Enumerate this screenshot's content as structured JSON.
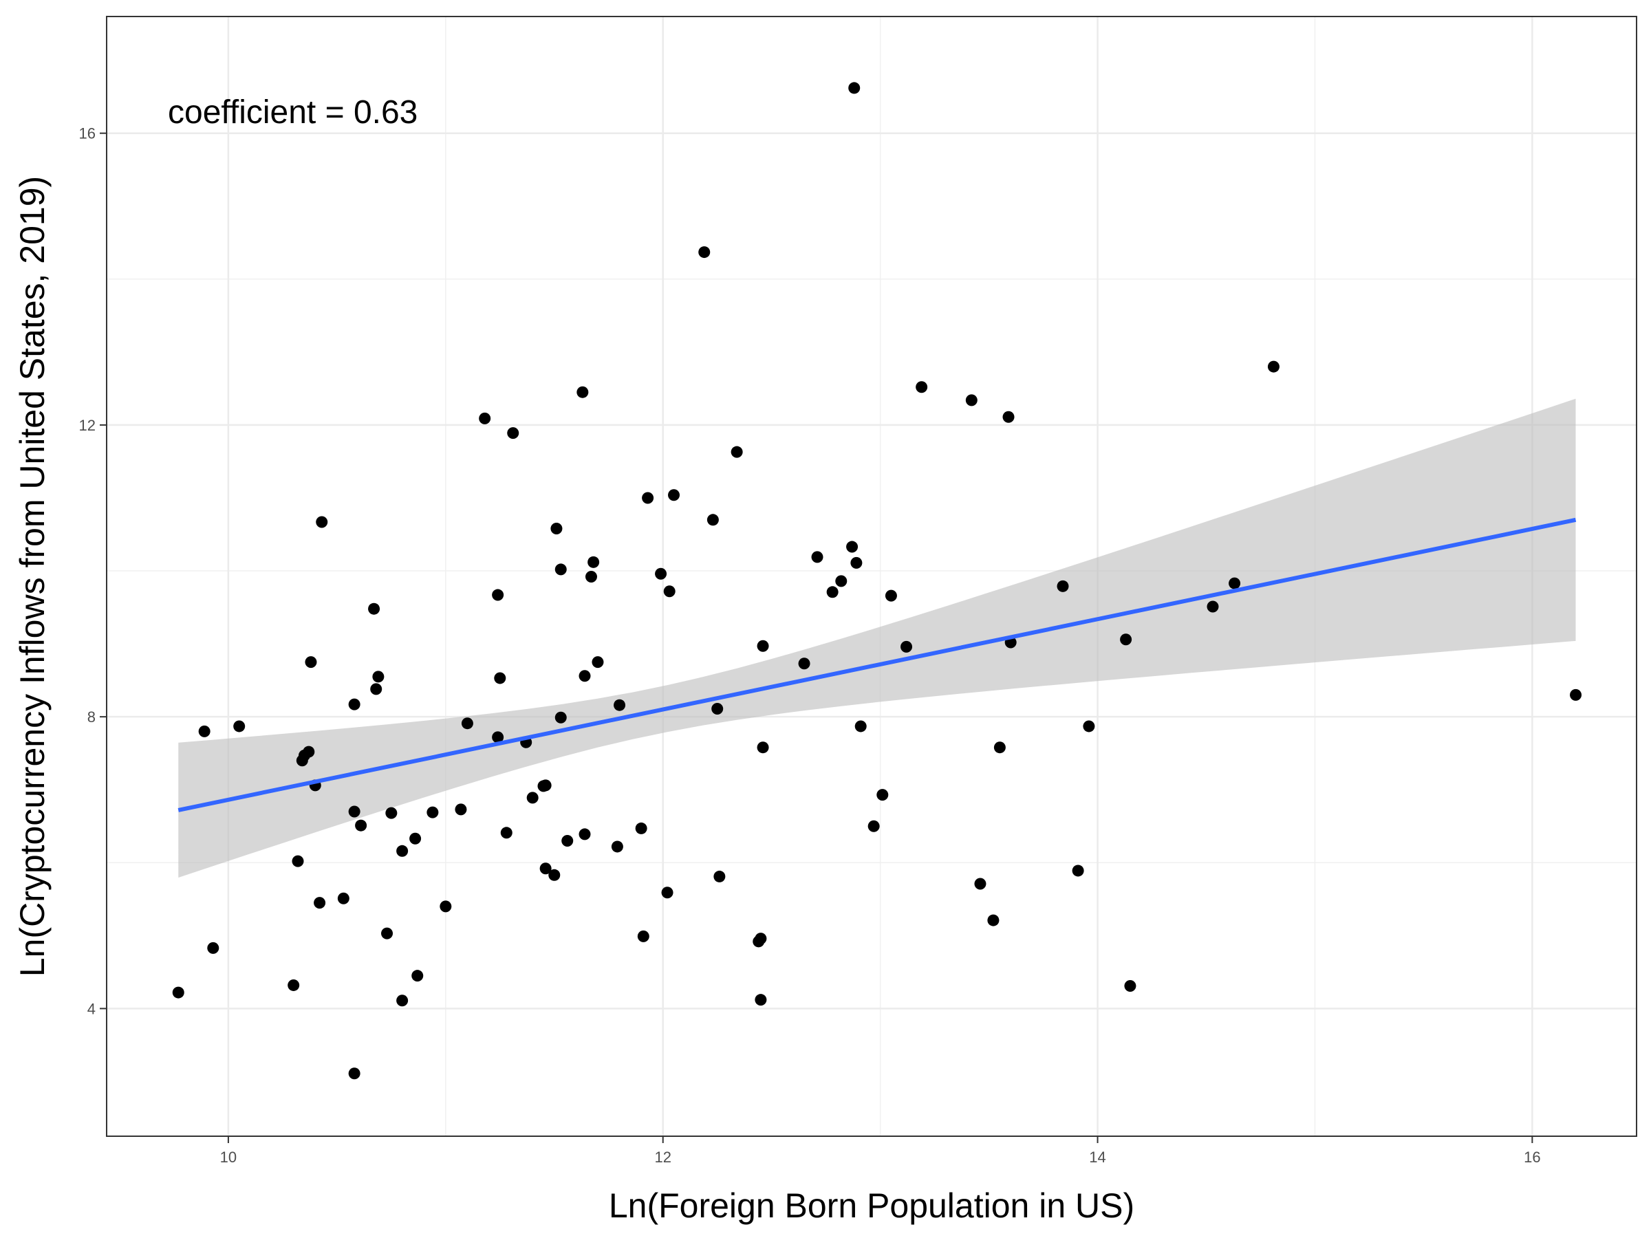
{
  "chart_data": {
    "type": "scatter",
    "xlabel": "Ln(Foreign Born Population in US)",
    "ylabel": "Ln(Cryptocurrency Inflows from United States, 2019)",
    "annotation": "coefficient =  0.63",
    "xlim": [
      9.44,
      16.48
    ],
    "ylim": [
      2.25,
      17.6
    ],
    "x_ticks": [
      10,
      12,
      14,
      16
    ],
    "y_ticks": [
      4,
      8,
      12,
      16
    ],
    "x_tick_labels": [
      "10",
      "12",
      "14",
      "16"
    ],
    "y_tick_labels": [
      "4",
      "8",
      "12",
      "16"
    ],
    "grid": true,
    "point_color": "#000000",
    "line_color": "#3366ff",
    "band_color": "#bfbfbf",
    "regression": {
      "x": [
        9.77,
        16.2
      ],
      "y": [
        6.72,
        10.7
      ],
      "ci_upper": [
        7.65,
        12.4
      ],
      "ci_lower": [
        5.8,
        9.08
      ]
    },
    "points": [
      {
        "x": 9.77,
        "y": 4.22
      },
      {
        "x": 9.89,
        "y": 7.8
      },
      {
        "x": 9.93,
        "y": 4.83
      },
      {
        "x": 10.05,
        "y": 7.87
      },
      {
        "x": 10.3,
        "y": 4.32
      },
      {
        "x": 10.32,
        "y": 6.02
      },
      {
        "x": 10.34,
        "y": 7.4
      },
      {
        "x": 10.35,
        "y": 7.47
      },
      {
        "x": 10.37,
        "y": 7.52
      },
      {
        "x": 10.38,
        "y": 8.75
      },
      {
        "x": 10.4,
        "y": 7.06
      },
      {
        "x": 10.42,
        "y": 5.45
      },
      {
        "x": 10.43,
        "y": 10.67
      },
      {
        "x": 10.53,
        "y": 5.51
      },
      {
        "x": 10.58,
        "y": 3.11
      },
      {
        "x": 10.58,
        "y": 6.7
      },
      {
        "x": 10.58,
        "y": 8.17
      },
      {
        "x": 10.61,
        "y": 6.51
      },
      {
        "x": 10.67,
        "y": 9.48
      },
      {
        "x": 10.68,
        "y": 8.38
      },
      {
        "x": 10.69,
        "y": 8.55
      },
      {
        "x": 10.73,
        "y": 5.03
      },
      {
        "x": 10.75,
        "y": 6.68
      },
      {
        "x": 10.8,
        "y": 4.11
      },
      {
        "x": 10.8,
        "y": 6.16
      },
      {
        "x": 10.86,
        "y": 6.33
      },
      {
        "x": 10.87,
        "y": 4.45
      },
      {
        "x": 10.94,
        "y": 6.69
      },
      {
        "x": 11.0,
        "y": 5.4
      },
      {
        "x": 11.07,
        "y": 6.73
      },
      {
        "x": 11.1,
        "y": 7.91
      },
      {
        "x": 11.18,
        "y": 12.09
      },
      {
        "x": 11.24,
        "y": 9.67
      },
      {
        "x": 11.24,
        "y": 7.72
      },
      {
        "x": 11.25,
        "y": 8.53
      },
      {
        "x": 11.28,
        "y": 6.41
      },
      {
        "x": 11.31,
        "y": 11.89
      },
      {
        "x": 11.37,
        "y": 7.65
      },
      {
        "x": 11.4,
        "y": 6.89
      },
      {
        "x": 11.45,
        "y": 7.05
      },
      {
        "x": 11.46,
        "y": 7.06
      },
      {
        "x": 11.46,
        "y": 5.92
      },
      {
        "x": 11.5,
        "y": 5.83
      },
      {
        "x": 11.51,
        "y": 10.58
      },
      {
        "x": 11.53,
        "y": 10.02
      },
      {
        "x": 11.53,
        "y": 7.99
      },
      {
        "x": 11.56,
        "y": 6.3
      },
      {
        "x": 11.63,
        "y": 12.45
      },
      {
        "x": 11.64,
        "y": 8.56
      },
      {
        "x": 11.64,
        "y": 6.39
      },
      {
        "x": 11.67,
        "y": 9.92
      },
      {
        "x": 11.68,
        "y": 10.12
      },
      {
        "x": 11.7,
        "y": 8.75
      },
      {
        "x": 11.79,
        "y": 6.22
      },
      {
        "x": 11.8,
        "y": 8.16
      },
      {
        "x": 11.9,
        "y": 6.47
      },
      {
        "x": 11.91,
        "y": 4.99
      },
      {
        "x": 11.93,
        "y": 11.0
      },
      {
        "x": 11.99,
        "y": 9.96
      },
      {
        "x": 12.02,
        "y": 5.59
      },
      {
        "x": 12.03,
        "y": 9.72
      },
      {
        "x": 12.05,
        "y": 11.04
      },
      {
        "x": 12.19,
        "y": 14.37
      },
      {
        "x": 12.23,
        "y": 10.7
      },
      {
        "x": 12.25,
        "y": 8.11
      },
      {
        "x": 12.26,
        "y": 5.81
      },
      {
        "x": 12.34,
        "y": 11.63
      },
      {
        "x": 12.44,
        "y": 4.92
      },
      {
        "x": 12.45,
        "y": 4.96
      },
      {
        "x": 12.45,
        "y": 4.12
      },
      {
        "x": 12.46,
        "y": 8.97
      },
      {
        "x": 12.46,
        "y": 7.58
      },
      {
        "x": 12.65,
        "y": 8.73
      },
      {
        "x": 12.71,
        "y": 10.19
      },
      {
        "x": 12.78,
        "y": 9.71
      },
      {
        "x": 12.82,
        "y": 9.86
      },
      {
        "x": 12.87,
        "y": 10.33
      },
      {
        "x": 12.88,
        "y": 16.62
      },
      {
        "x": 12.89,
        "y": 10.11
      },
      {
        "x": 12.91,
        "y": 7.87
      },
      {
        "x": 12.97,
        "y": 6.5
      },
      {
        "x": 13.01,
        "y": 6.93
      },
      {
        "x": 13.05,
        "y": 9.66
      },
      {
        "x": 13.12,
        "y": 8.96
      },
      {
        "x": 13.19,
        "y": 12.52
      },
      {
        "x": 13.42,
        "y": 12.34
      },
      {
        "x": 13.46,
        "y": 5.71
      },
      {
        "x": 13.52,
        "y": 5.21
      },
      {
        "x": 13.55,
        "y": 7.58
      },
      {
        "x": 13.59,
        "y": 12.11
      },
      {
        "x": 13.6,
        "y": 9.02
      },
      {
        "x": 13.84,
        "y": 9.79
      },
      {
        "x": 13.91,
        "y": 5.89
      },
      {
        "x": 13.96,
        "y": 7.87
      },
      {
        "x": 14.13,
        "y": 9.06
      },
      {
        "x": 14.15,
        "y": 4.31
      },
      {
        "x": 14.53,
        "y": 9.51
      },
      {
        "x": 14.63,
        "y": 9.83
      },
      {
        "x": 14.81,
        "y": 12.8
      },
      {
        "x": 16.2,
        "y": 8.3
      }
    ]
  }
}
